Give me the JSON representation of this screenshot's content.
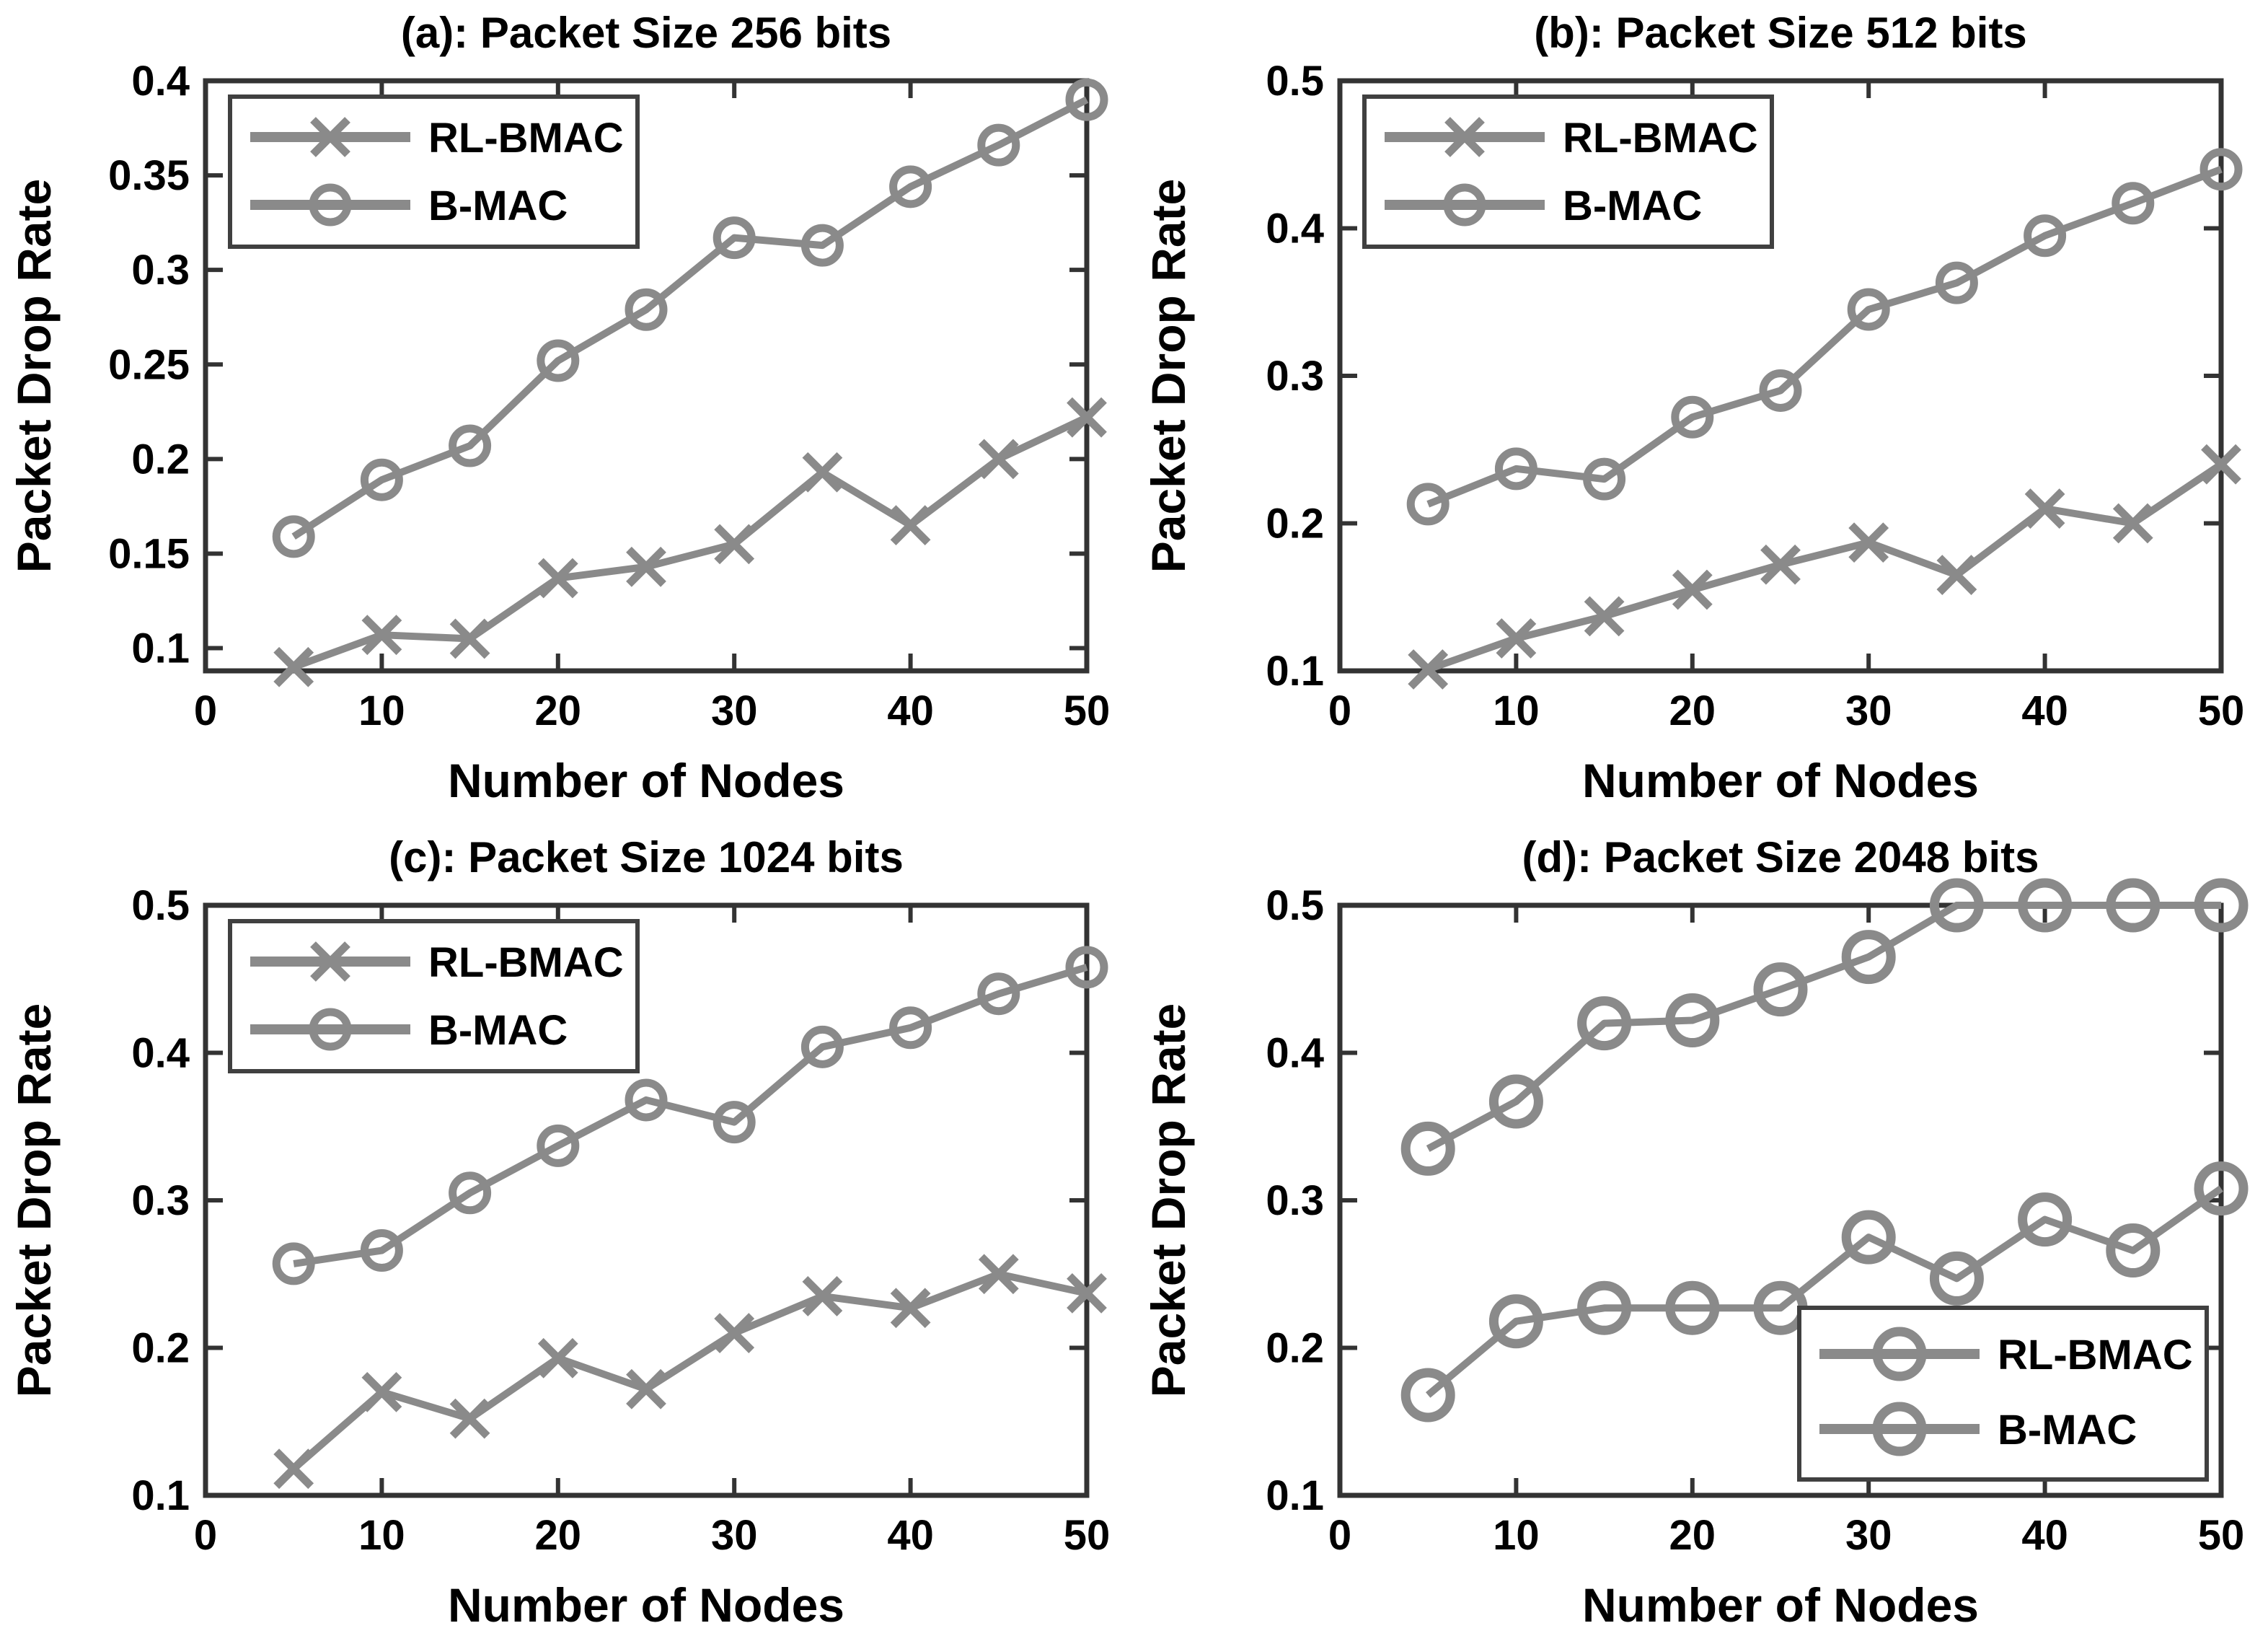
{
  "figure": {
    "background": "#ffffff",
    "series_color": "#8a8a8a",
    "axis_color": "#333333",
    "text_color": "#000000",
    "legend_border_color": "#404040",
    "xlabel": "Number of Nodes",
    "ylabel": "Packet Drop Rate"
  },
  "chart_data": [
    {
      "id": "a",
      "type": "line",
      "title": "(a): Packet Size 256 bits",
      "xlabel": "Number of Nodes",
      "ylabel": "Packet Drop Rate",
      "x": [
        5,
        10,
        15,
        20,
        25,
        30,
        35,
        40,
        45,
        50
      ],
      "series": [
        {
          "name": "RL-BMAC",
          "marker": "x",
          "values": [
            0.09,
            0.107,
            0.105,
            0.137,
            0.143,
            0.155,
            0.193,
            0.165,
            0.2,
            0.222
          ]
        },
        {
          "name": "B-MAC",
          "marker": "o",
          "values": [
            0.159,
            0.189,
            0.207,
            0.252,
            0.279,
            0.317,
            0.313,
            0.344,
            0.366,
            0.39
          ]
        }
      ],
      "xlim": [
        0,
        50
      ],
      "ylim": [
        0.088,
        0.4
      ],
      "xticks": [
        0,
        10,
        20,
        30,
        40,
        50
      ],
      "xtick_labels": [
        "0",
        "10",
        "20",
        "30",
        "40",
        "50"
      ],
      "yticks": [
        0.1,
        0.15,
        0.2,
        0.25,
        0.3,
        0.35,
        0.4
      ],
      "ytick_labels": [
        "0.1",
        "0.15",
        "0.2",
        "0.25",
        "0.3",
        "0.35",
        "0.4"
      ],
      "grid": false,
      "legend_position": "top-left",
      "legend_entries": [
        {
          "label": "RL-BMAC",
          "marker": "x"
        },
        {
          "label": "B-MAC",
          "marker": "o"
        }
      ],
      "marker_size": 24,
      "marker_stroke": 11,
      "line_width": 10
    },
    {
      "id": "b",
      "type": "line",
      "title": "(b): Packet Size 512 bits",
      "xlabel": "Number of Nodes",
      "ylabel": "Packet Drop Rate",
      "x": [
        5,
        10,
        15,
        20,
        25,
        30,
        35,
        40,
        45,
        50
      ],
      "series": [
        {
          "name": "RL-BMAC",
          "marker": "x",
          "values": [
            0.101,
            0.122,
            0.137,
            0.155,
            0.172,
            0.187,
            0.165,
            0.21,
            0.2,
            0.24
          ]
        },
        {
          "name": "B-MAC",
          "marker": "o",
          "values": [
            0.213,
            0.237,
            0.23,
            0.272,
            0.29,
            0.345,
            0.363,
            0.395,
            0.417,
            0.44
          ]
        }
      ],
      "xlim": [
        0,
        50
      ],
      "ylim": [
        0.1,
        0.5
      ],
      "xticks": [
        0,
        10,
        20,
        30,
        40,
        50
      ],
      "xtick_labels": [
        "0",
        "10",
        "20",
        "30",
        "40",
        "50"
      ],
      "yticks": [
        0.1,
        0.2,
        0.3,
        0.4,
        0.5
      ],
      "ytick_labels": [
        "0.1",
        "0.2",
        "0.3",
        "0.4",
        "0.5"
      ],
      "grid": false,
      "legend_position": "top-left",
      "legend_entries": [
        {
          "label": "RL-BMAC",
          "marker": "x"
        },
        {
          "label": "B-MAC",
          "marker": "o"
        }
      ],
      "marker_size": 24,
      "marker_stroke": 11,
      "line_width": 10
    },
    {
      "id": "c",
      "type": "line",
      "title": "(c): Packet Size 1024 bits",
      "xlabel": "Number of Nodes",
      "ylabel": "Packet Drop Rate",
      "x": [
        5,
        10,
        15,
        20,
        25,
        30,
        35,
        40,
        45,
        50
      ],
      "series": [
        {
          "name": "RL-BMAC",
          "marker": "x",
          "values": [
            0.118,
            0.17,
            0.152,
            0.193,
            0.172,
            0.21,
            0.235,
            0.227,
            0.25,
            0.237
          ]
        },
        {
          "name": "B-MAC",
          "marker": "o",
          "values": [
            0.257,
            0.266,
            0.305,
            0.337,
            0.368,
            0.353,
            0.404,
            0.417,
            0.44,
            0.458
          ]
        }
      ],
      "xlim": [
        0,
        50
      ],
      "ylim": [
        0.1,
        0.5
      ],
      "xticks": [
        0,
        10,
        20,
        30,
        40,
        50
      ],
      "xtick_labels": [
        "0",
        "10",
        "20",
        "30",
        "40",
        "50"
      ],
      "yticks": [
        0.1,
        0.2,
        0.3,
        0.4,
        0.5
      ],
      "ytick_labels": [
        "0.1",
        "0.2",
        "0.3",
        "0.4",
        "0.5"
      ],
      "grid": false,
      "legend_position": "top-left",
      "legend_entries": [
        {
          "label": "RL-BMAC",
          "marker": "x"
        },
        {
          "label": "B-MAC",
          "marker": "o"
        }
      ],
      "marker_size": 24,
      "marker_stroke": 11,
      "line_width": 10
    },
    {
      "id": "d",
      "type": "line",
      "title": "(d): Packet Size 2048 bits",
      "xlabel": "Number of Nodes",
      "ylabel": "Packet Drop Rate",
      "x": [
        5,
        10,
        15,
        20,
        25,
        30,
        35,
        40,
        45,
        50
      ],
      "series": [
        {
          "name": "RL-BMAC",
          "marker": "o",
          "values": [
            0.168,
            0.218,
            0.227,
            0.227,
            0.227,
            0.275,
            0.247,
            0.287,
            0.266,
            0.308
          ]
        },
        {
          "name": "B-MAC",
          "marker": "o",
          "values": [
            0.335,
            0.367,
            0.42,
            0.422,
            0.443,
            0.465,
            0.5,
            0.5,
            0.5,
            0.5
          ]
        }
      ],
      "xlim": [
        0,
        50
      ],
      "ylim": [
        0.1,
        0.5
      ],
      "xticks": [
        0,
        10,
        20,
        30,
        40,
        50
      ],
      "xtick_labels": [
        "0",
        "10",
        "20",
        "30",
        "40",
        "50"
      ],
      "yticks": [
        0.1,
        0.2,
        0.3,
        0.4,
        0.5
      ],
      "ytick_labels": [
        "0.1",
        "0.2",
        "0.3",
        "0.4",
        "0.5"
      ],
      "grid": false,
      "legend_position": "bottom-right",
      "legend_entries": [
        {
          "label": "RL-BMAC",
          "marker": "o"
        },
        {
          "label": "B-MAC",
          "marker": "o"
        }
      ],
      "marker_size": 31,
      "marker_stroke": 13,
      "line_width": 10
    }
  ]
}
